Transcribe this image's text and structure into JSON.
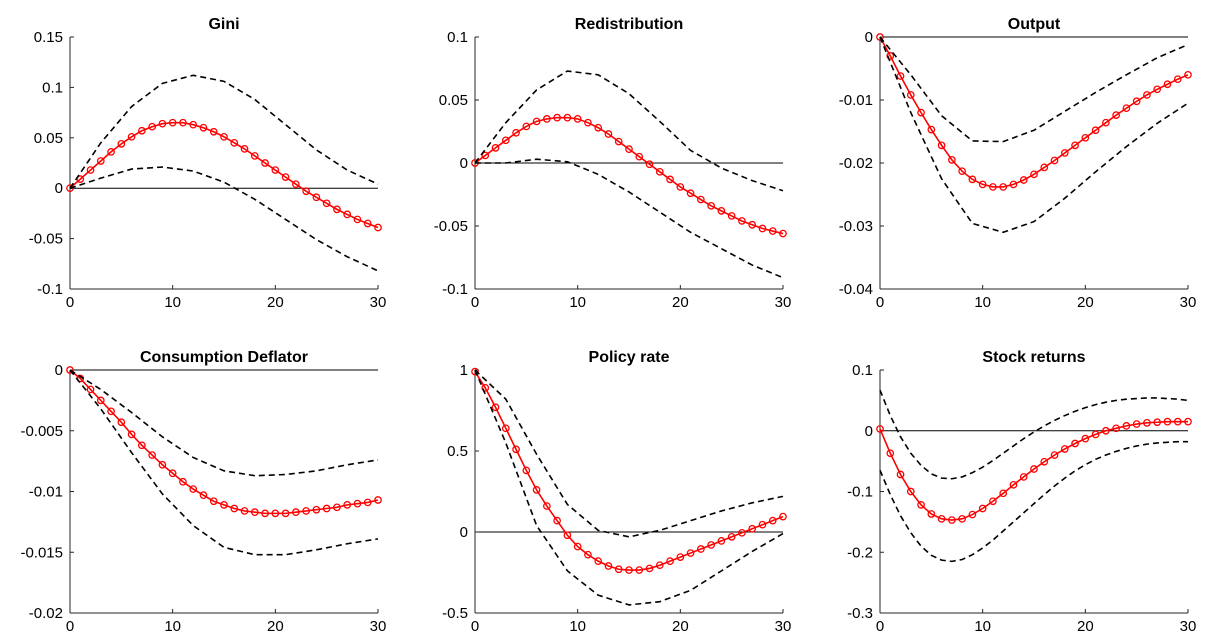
{
  "chart_data": [
    {
      "type": "line",
      "title": "Gini",
      "xlim": [
        0,
        30
      ],
      "ylim": [
        -0.1,
        0.15
      ],
      "xticks": [
        "0",
        "10",
        "20",
        "30"
      ],
      "yticks": [
        "0.15",
        "0.1",
        "0.05",
        "0",
        "-0.05",
        "-0.1"
      ],
      "zero_line": true,
      "series": [
        {
          "role": "median",
          "color": "#ff0000",
          "marker": "circle",
          "style": "solid",
          "x": [
            0,
            1,
            2,
            3,
            4,
            5,
            6,
            7,
            8,
            9,
            10,
            11,
            12,
            13,
            14,
            15,
            16,
            17,
            18,
            19,
            20,
            21,
            22,
            23,
            24,
            25,
            26,
            27,
            28,
            29,
            30
          ],
          "values": [
            0,
            0.009,
            0.018,
            0.027,
            0.036,
            0.044,
            0.051,
            0.057,
            0.061,
            0.064,
            0.065,
            0.065,
            0.063,
            0.06,
            0.056,
            0.051,
            0.045,
            0.039,
            0.032,
            0.025,
            0.018,
            0.011,
            0.004,
            -0.003,
            -0.009,
            -0.015,
            -0.021,
            -0.026,
            -0.031,
            -0.035,
            -0.039
          ]
        },
        {
          "role": "upper band",
          "color": "#000000",
          "style": "dashed",
          "x": [
            0,
            3,
            6,
            9,
            12,
            15,
            18,
            21,
            24,
            27,
            30
          ],
          "values": [
            0,
            0.045,
            0.081,
            0.104,
            0.112,
            0.106,
            0.088,
            0.063,
            0.038,
            0.018,
            0.004
          ]
        },
        {
          "role": "lower band",
          "color": "#000000",
          "style": "dashed",
          "x": [
            0,
            3,
            6,
            9,
            12,
            15,
            18,
            21,
            24,
            27,
            30
          ],
          "values": [
            0,
            0.01,
            0.019,
            0.021,
            0.017,
            0.006,
            -0.011,
            -0.031,
            -0.051,
            -0.068,
            -0.082
          ]
        }
      ]
    },
    {
      "type": "line",
      "title": "Redistribution",
      "xlim": [
        0,
        30
      ],
      "ylim": [
        -0.1,
        0.1
      ],
      "xticks": [
        "0",
        "10",
        "20",
        "30"
      ],
      "yticks": [
        "0.1",
        "0.05",
        "0",
        "-0.05",
        "-0.1"
      ],
      "zero_line": true,
      "series": [
        {
          "role": "median",
          "color": "#ff0000",
          "marker": "circle",
          "style": "solid",
          "x": [
            0,
            1,
            2,
            3,
            4,
            5,
            6,
            7,
            8,
            9,
            10,
            11,
            12,
            13,
            14,
            15,
            16,
            17,
            18,
            19,
            20,
            21,
            22,
            23,
            24,
            25,
            26,
            27,
            28,
            29,
            30
          ],
          "values": [
            0,
            0.006,
            0.012,
            0.018,
            0.024,
            0.029,
            0.033,
            0.035,
            0.036,
            0.036,
            0.035,
            0.032,
            0.028,
            0.023,
            0.017,
            0.011,
            0.005,
            -0.001,
            -0.007,
            -0.013,
            -0.019,
            -0.024,
            -0.029,
            -0.034,
            -0.038,
            -0.042,
            -0.046,
            -0.049,
            -0.052,
            -0.054,
            -0.056
          ]
        },
        {
          "role": "upper band",
          "color": "#000000",
          "style": "dashed",
          "x": [
            0,
            3,
            6,
            9,
            12,
            15,
            18,
            21,
            24,
            27,
            30
          ],
          "values": [
            0,
            0.032,
            0.058,
            0.073,
            0.07,
            0.055,
            0.033,
            0.01,
            -0.004,
            -0.014,
            -0.022
          ]
        },
        {
          "role": "lower band",
          "color": "#000000",
          "style": "dashed",
          "x": [
            0,
            3,
            6,
            9,
            12,
            15,
            18,
            21,
            24,
            27,
            30
          ],
          "values": [
            0,
            0,
            0.003,
            0.001,
            -0.009,
            -0.023,
            -0.039,
            -0.055,
            -0.068,
            -0.081,
            -0.091
          ]
        }
      ]
    },
    {
      "type": "line",
      "title": "Output",
      "xlim": [
        0,
        30
      ],
      "ylim": [
        -0.04,
        0
      ],
      "xticks": [
        "0",
        "10",
        "20",
        "30"
      ],
      "yticks": [
        "0",
        "-0.01",
        "-0.02",
        "-0.03",
        "-0.04"
      ],
      "zero_line": true,
      "series": [
        {
          "role": "median",
          "color": "#ff0000",
          "marker": "circle",
          "style": "solid",
          "x": [
            0,
            1,
            2,
            3,
            4,
            5,
            6,
            7,
            8,
            9,
            10,
            11,
            12,
            13,
            14,
            15,
            16,
            17,
            18,
            19,
            20,
            21,
            22,
            23,
            24,
            25,
            26,
            27,
            28,
            29,
            30
          ],
          "values": [
            0,
            -0.003,
            -0.0062,
            -0.0092,
            -0.012,
            -0.0147,
            -0.0172,
            -0.0195,
            -0.0213,
            -0.0226,
            -0.0234,
            -0.0238,
            -0.0238,
            -0.0234,
            -0.0227,
            -0.0218,
            -0.0207,
            -0.0196,
            -0.0184,
            -0.0172,
            -0.016,
            -0.0148,
            -0.0136,
            -0.0124,
            -0.0113,
            -0.0102,
            -0.0092,
            -0.0083,
            -0.0075,
            -0.0067,
            -0.006
          ]
        },
        {
          "role": "upper band",
          "color": "#000000",
          "style": "dashed",
          "x": [
            0,
            3,
            6,
            9,
            12,
            15,
            18,
            21,
            24,
            27,
            30
          ],
          "values": [
            0,
            -0.006,
            -0.0125,
            -0.0165,
            -0.0166,
            -0.0148,
            -0.0118,
            -0.0088,
            -0.006,
            -0.0033,
            -0.0012
          ]
        },
        {
          "role": "lower band",
          "color": "#000000",
          "style": "dashed",
          "x": [
            0,
            3,
            6,
            9,
            12,
            15,
            18,
            21,
            24,
            27,
            30
          ],
          "values": [
            0,
            -0.012,
            -0.0225,
            -0.0296,
            -0.031,
            -0.0293,
            -0.0256,
            -0.0214,
            -0.0174,
            -0.0137,
            -0.0105
          ]
        }
      ]
    },
    {
      "type": "line",
      "title": "Consumption Deflator",
      "xlim": [
        0,
        30
      ],
      "ylim": [
        -0.02,
        0
      ],
      "xticks": [
        "0",
        "10",
        "20",
        "30"
      ],
      "yticks": [
        "0",
        "-0.005",
        "-0.01",
        "-0.015",
        "-0.02"
      ],
      "zero_line": true,
      "series": [
        {
          "role": "median",
          "color": "#ff0000",
          "marker": "circle",
          "style": "solid",
          "x": [
            0,
            1,
            2,
            3,
            4,
            5,
            6,
            7,
            8,
            9,
            10,
            11,
            12,
            13,
            14,
            15,
            16,
            17,
            18,
            19,
            20,
            21,
            22,
            23,
            24,
            25,
            26,
            27,
            28,
            29,
            30
          ],
          "values": [
            0,
            -0.0007,
            -0.0016,
            -0.0025,
            -0.0034,
            -0.0043,
            -0.0053,
            -0.0062,
            -0.007,
            -0.0078,
            -0.0085,
            -0.0092,
            -0.0098,
            -0.0103,
            -0.0108,
            -0.0111,
            -0.0114,
            -0.0116,
            -0.0117,
            -0.0118,
            -0.0118,
            -0.0118,
            -0.0117,
            -0.0116,
            -0.0115,
            -0.0114,
            -0.0113,
            -0.0111,
            -0.011,
            -0.0109,
            -0.0107
          ]
        },
        {
          "role": "upper band",
          "color": "#000000",
          "style": "dashed",
          "x": [
            0,
            3,
            6,
            9,
            12,
            15,
            18,
            21,
            24,
            27,
            30
          ],
          "values": [
            0,
            -0.0016,
            -0.0035,
            -0.0055,
            -0.0072,
            -0.0083,
            -0.0087,
            -0.0086,
            -0.0083,
            -0.0078,
            -0.0074
          ]
        },
        {
          "role": "lower band",
          "color": "#000000",
          "style": "dashed",
          "x": [
            0,
            3,
            6,
            9,
            12,
            15,
            18,
            21,
            24,
            27,
            30
          ],
          "values": [
            0,
            -0.0032,
            -0.0068,
            -0.0102,
            -0.0128,
            -0.0146,
            -0.0152,
            -0.0152,
            -0.0148,
            -0.0143,
            -0.0139
          ]
        }
      ]
    },
    {
      "type": "line",
      "title": "Policy rate",
      "xlim": [
        0,
        30
      ],
      "ylim": [
        -0.5,
        1
      ],
      "xticks": [
        "0",
        "10",
        "20",
        "30"
      ],
      "yticks": [
        "1",
        "0.5",
        "0",
        "-0.5"
      ],
      "zero_line": true,
      "series": [
        {
          "role": "median",
          "color": "#ff0000",
          "marker": "circle",
          "style": "solid",
          "x": [
            0,
            1,
            2,
            3,
            4,
            5,
            6,
            7,
            8,
            9,
            10,
            11,
            12,
            13,
            14,
            15,
            16,
            17,
            18,
            19,
            20,
            21,
            22,
            23,
            24,
            25,
            26,
            27,
            28,
            29,
            30
          ],
          "values": [
            0.99,
            0.89,
            0.77,
            0.64,
            0.51,
            0.38,
            0.26,
            0.16,
            0.07,
            -0.02,
            -0.09,
            -0.14,
            -0.18,
            -0.21,
            -0.23,
            -0.235,
            -0.235,
            -0.225,
            -0.205,
            -0.18,
            -0.155,
            -0.13,
            -0.105,
            -0.08,
            -0.055,
            -0.03,
            -0.005,
            0.02,
            0.045,
            0.07,
            0.095
          ]
        },
        {
          "role": "upper band",
          "color": "#000000",
          "style": "dashed",
          "x": [
            0,
            3,
            6,
            9,
            12,
            15,
            18,
            21,
            24,
            27,
            30
          ],
          "values": [
            1,
            0.82,
            0.48,
            0.17,
            0.01,
            -0.03,
            0.01,
            0.07,
            0.13,
            0.18,
            0.22
          ]
        },
        {
          "role": "lower band",
          "color": "#000000",
          "style": "dashed",
          "x": [
            0,
            3,
            6,
            9,
            12,
            15,
            18,
            21,
            24,
            27,
            30
          ],
          "values": [
            1,
            0.55,
            0.04,
            -0.24,
            -0.39,
            -0.45,
            -0.43,
            -0.36,
            -0.24,
            -0.12,
            -0.01
          ]
        }
      ]
    },
    {
      "type": "line",
      "title": "Stock returns",
      "xlim": [
        0,
        30
      ],
      "ylim": [
        -0.3,
        0.1
      ],
      "xticks": [
        "0",
        "10",
        "20",
        "30"
      ],
      "yticks": [
        "0.1",
        "0",
        "-0.1",
        "-0.2",
        "-0.3"
      ],
      "zero_line": true,
      "series": [
        {
          "role": "median",
          "color": "#ff0000",
          "marker": "circle",
          "style": "solid",
          "x": [
            0,
            1,
            2,
            3,
            4,
            5,
            6,
            7,
            8,
            9,
            10,
            11,
            12,
            13,
            14,
            15,
            16,
            17,
            18,
            19,
            20,
            21,
            22,
            23,
            24,
            25,
            26,
            27,
            28,
            29,
            30
          ],
          "values": [
            0.003,
            -0.037,
            -0.072,
            -0.1,
            -0.122,
            -0.137,
            -0.145,
            -0.147,
            -0.145,
            -0.138,
            -0.128,
            -0.116,
            -0.103,
            -0.089,
            -0.076,
            -0.063,
            -0.051,
            -0.04,
            -0.03,
            -0.021,
            -0.013,
            -0.006,
            0,
            0.004,
            0.008,
            0.011,
            0.013,
            0.014,
            0.015,
            0.015,
            0.015
          ]
        },
        {
          "role": "upper band",
          "color": "#000000",
          "style": "dashed",
          "x": [
            0,
            1,
            2,
            3,
            4,
            5,
            6,
            7,
            8,
            9,
            10,
            11,
            12,
            13,
            14,
            15,
            16,
            17,
            18,
            19,
            20,
            21,
            22,
            23,
            24,
            25,
            26,
            27,
            28,
            29,
            30
          ],
          "values": [
            0.067,
            0.025,
            -0.01,
            -0.037,
            -0.057,
            -0.071,
            -0.078,
            -0.079,
            -0.076,
            -0.069,
            -0.06,
            -0.049,
            -0.037,
            -0.025,
            -0.013,
            -0.002,
            0.008,
            0.017,
            0.025,
            0.032,
            0.038,
            0.043,
            0.047,
            0.05,
            0.052,
            0.053,
            0.054,
            0.054,
            0.053,
            0.052,
            0.05
          ]
        },
        {
          "role": "lower band",
          "color": "#000000",
          "style": "dashed",
          "x": [
            0,
            1,
            2,
            3,
            4,
            5,
            6,
            7,
            8,
            9,
            10,
            11,
            12,
            13,
            14,
            15,
            16,
            17,
            18,
            19,
            20,
            21,
            22,
            23,
            24,
            25,
            26,
            27,
            28,
            29,
            30
          ],
          "values": [
            -0.065,
            -0.105,
            -0.14,
            -0.168,
            -0.19,
            -0.205,
            -0.213,
            -0.215,
            -0.212,
            -0.204,
            -0.193,
            -0.18,
            -0.165,
            -0.15,
            -0.135,
            -0.12,
            -0.105,
            -0.091,
            -0.078,
            -0.066,
            -0.056,
            -0.047,
            -0.04,
            -0.034,
            -0.029,
            -0.025,
            -0.022,
            -0.02,
            -0.019,
            -0.018,
            -0.018
          ]
        }
      ]
    }
  ]
}
